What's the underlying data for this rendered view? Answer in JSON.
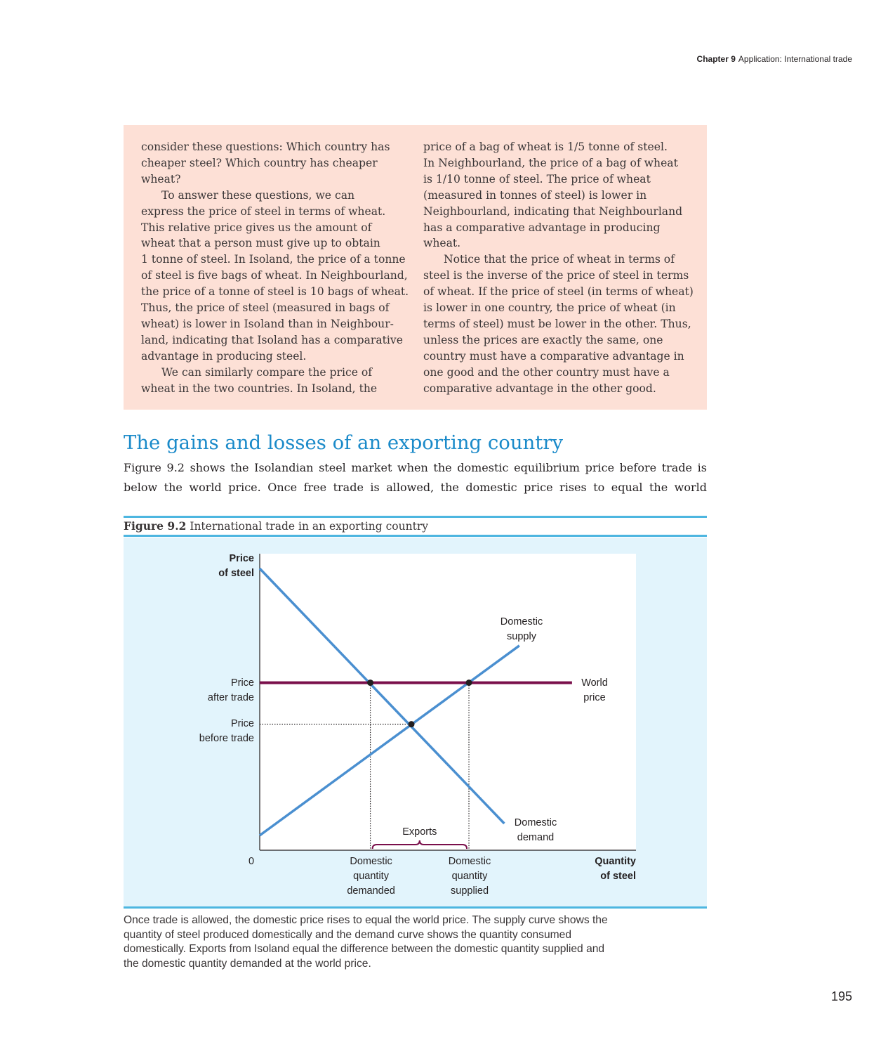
{
  "running_head": {
    "chapter": "Chapter 9",
    "title": "Application: International trade"
  },
  "box": {
    "col1": [
      "consider these questions: Which country has",
      "cheaper steel? Which country has cheaper",
      "wheat?",
      "To answer these questions, we can",
      "express the price of steel in terms of wheat.",
      "This relative price gives us the amount of",
      "wheat that a person must give up to obtain",
      "1 tonne of steel. In Isoland, the price of a tonne",
      "of steel is five bags of wheat. In Neighbourland,",
      "the price of a tonne of steel is 10 bags of wheat.",
      "Thus, the price of steel (measured in bags of",
      "wheat) is lower in Isoland than in Neighbour-",
      "land, indicating that Isoland has a comparative",
      "advantage in producing steel.",
      "We can similarly compare the price of",
      "wheat in the two countries. In Isoland, the"
    ],
    "col2": [
      "price of a bag of wheat is 1/5 tonne of steel.",
      "In Neighbourland, the price of a bag of wheat",
      "is 1/10 tonne of steel. The price of wheat",
      "(measured in tonnes of steel) is lower in",
      "Neighbourland, indicating that Neighbourland",
      "has a comparative advantage in producing",
      "wheat.",
      "Notice that the price of wheat in terms of",
      "steel is the inverse of the price of steel in terms",
      "of wheat. If the price of steel (in terms of wheat)",
      "is lower in one country, the price of wheat (in",
      "terms of steel) must be lower in the other. Thus,",
      "unless the prices are exactly the same, one",
      "country must have a comparative advantage in",
      "one good and the other country must have a",
      "comparative advantage in the other good."
    ]
  },
  "section": {
    "heading": "The gains and losses of an exporting country",
    "body_lines": [
      "Figure 9.2 shows the Isolandian steel market when the domestic equilibrium price before trade is",
      "below the world price. Once free trade is allowed, the domestic price rises to equal the world"
    ]
  },
  "figure": {
    "number": "Figure 9.2",
    "title": "International trade in an exporting country",
    "note_lines": [
      "Once trade is allowed, the domestic price rises to equal the world price. The supply curve shows the",
      "quantity of steel produced domestically and the demand curve shows the quantity consumed",
      "domestically. Exports from Isoland equal the difference between the domestic quantity supplied and",
      "the domestic quantity demanded at the world price."
    ]
  },
  "chart_data": {
    "type": "line",
    "title": "International trade in an exporting country",
    "ylabel": [
      "Price",
      "of steel"
    ],
    "xlabel": [
      "Quantity",
      "of steel"
    ],
    "origin_label": "0",
    "xlim": [
      0,
      100
    ],
    "ylim": [
      0,
      100
    ],
    "grid": false,
    "series": [
      {
        "name": "Domestic supply",
        "label_lines": [
          "Domestic",
          "supply"
        ],
        "color": "#4a8fd0",
        "points": [
          [
            0,
            5
          ],
          [
            69,
            69
          ]
        ]
      },
      {
        "name": "Domestic demand",
        "label_lines": [
          "Domestic",
          "demand"
        ],
        "color": "#4a8fd0",
        "points": [
          [
            0,
            95
          ],
          [
            65,
            9
          ]
        ]
      },
      {
        "name": "World price",
        "label_lines": [
          "World",
          "price"
        ],
        "color": "#7a0f4b",
        "points": [
          [
            0,
            56.5
          ],
          [
            83,
            56.5
          ]
        ]
      }
    ],
    "y_ticks": [
      {
        "value": 56.5,
        "label_lines": [
          "Price",
          "after trade"
        ]
      },
      {
        "value": 42.5,
        "label_lines": [
          "Price",
          "before trade"
        ]
      }
    ],
    "x_ticks": [
      {
        "value": 29.4,
        "label_lines": [
          "Domestic",
          "quantity",
          "demanded"
        ]
      },
      {
        "value": 55.6,
        "label_lines": [
          "Domestic",
          "quantity",
          "supplied"
        ]
      }
    ],
    "points": [
      {
        "label": "equilibrium before trade",
        "x": 40.3,
        "y": 42.5
      },
      {
        "label": "demand at world price",
        "x": 29.4,
        "y": 56.5
      },
      {
        "label": "supply at world price",
        "x": 55.6,
        "y": 56.5
      }
    ],
    "annotations": [
      {
        "text": "Exports",
        "from_x": 29.4,
        "to_x": 55.6
      }
    ]
  },
  "page_number": "195"
}
